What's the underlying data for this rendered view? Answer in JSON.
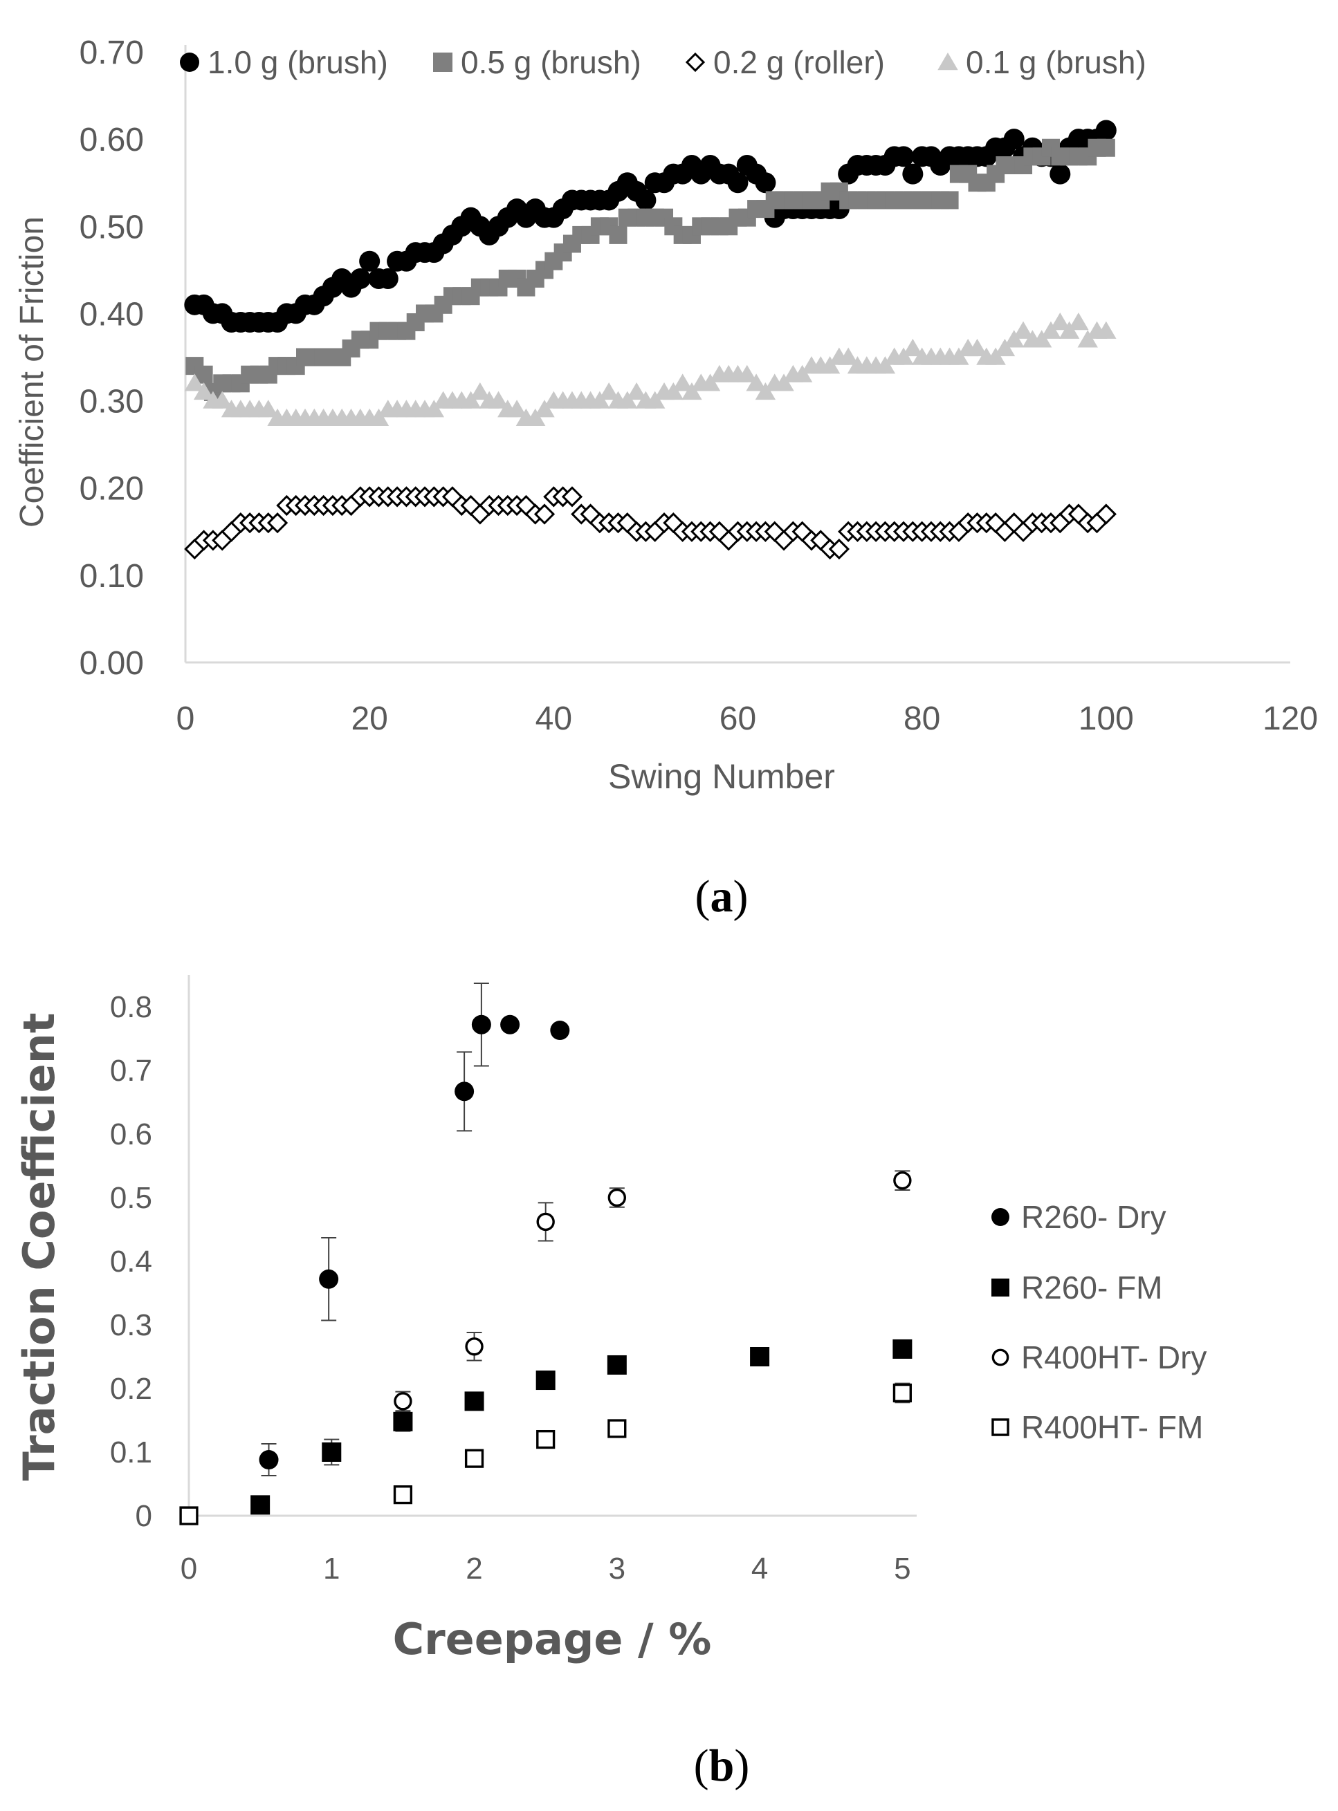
{
  "colors": {
    "black": "#000000",
    "dark_gray": "#7f7f7f",
    "light_gray": "#c8c8c8",
    "axis": "#d9d9d9",
    "text": "#595959"
  },
  "chart_data": [
    {
      "id": "a",
      "type": "scatter",
      "caption": "a",
      "xlabel": "Swing Number",
      "ylabel": "Coefficient of Friction",
      "xlim": [
        0,
        120
      ],
      "ylim": [
        0,
        0.7
      ],
      "x_ticks": [
        "0",
        "20",
        "40",
        "60",
        "80",
        "100",
        "120"
      ],
      "y_ticks": [
        "0.00",
        "0.10",
        "0.20",
        "0.30",
        "0.40",
        "0.50",
        "0.60",
        "0.70"
      ],
      "legend_position": "top",
      "series": [
        {
          "name": "1.0 g (brush)",
          "marker": "circle-filled",
          "color": "#000000",
          "x": [
            1,
            2,
            3,
            4,
            5,
            6,
            7,
            8,
            9,
            10,
            11,
            12,
            13,
            14,
            15,
            16,
            17,
            18,
            19,
            20,
            21,
            22,
            23,
            24,
            25,
            26,
            27,
            28,
            29,
            30,
            31,
            32,
            33,
            34,
            35,
            36,
            37,
            38,
            39,
            40,
            41,
            42,
            43,
            44,
            45,
            46,
            47,
            48,
            49,
            50,
            51,
            52,
            53,
            54,
            55,
            56,
            57,
            58,
            59,
            60,
            61,
            62,
            63,
            64,
            65,
            66,
            67,
            68,
            69,
            70,
            71,
            72,
            73,
            74,
            75,
            76,
            77,
            78,
            79,
            80,
            81,
            82,
            83,
            84,
            85,
            86,
            87,
            88,
            89,
            90,
            91,
            92,
            93,
            94,
            95,
            96,
            97,
            98,
            99,
            100
          ],
          "y": [
            0.41,
            0.41,
            0.4,
            0.4,
            0.39,
            0.39,
            0.39,
            0.39,
            0.39,
            0.39,
            0.4,
            0.4,
            0.41,
            0.41,
            0.42,
            0.43,
            0.44,
            0.43,
            0.44,
            0.46,
            0.44,
            0.44,
            0.46,
            0.46,
            0.47,
            0.47,
            0.47,
            0.48,
            0.49,
            0.5,
            0.51,
            0.5,
            0.49,
            0.5,
            0.51,
            0.52,
            0.51,
            0.52,
            0.51,
            0.51,
            0.52,
            0.53,
            0.53,
            0.53,
            0.53,
            0.53,
            0.54,
            0.55,
            0.54,
            0.53,
            0.55,
            0.55,
            0.56,
            0.56,
            0.57,
            0.56,
            0.57,
            0.56,
            0.56,
            0.55,
            0.57,
            0.56,
            0.55,
            0.51,
            0.52,
            0.52,
            0.52,
            0.52,
            0.52,
            0.52,
            0.52,
            0.56,
            0.57,
            0.57,
            0.57,
            0.57,
            0.58,
            0.58,
            0.56,
            0.58,
            0.58,
            0.57,
            0.58,
            0.58,
            0.58,
            0.58,
            0.58,
            0.59,
            0.59,
            0.6,
            0.58,
            0.59,
            0.58,
            0.58,
            0.56,
            0.59,
            0.6,
            0.6,
            0.6,
            0.61
          ]
        },
        {
          "name": "0.5 g (brush)",
          "marker": "square-filled",
          "color": "#7f7f7f",
          "x": [
            1,
            2,
            3,
            4,
            5,
            6,
            7,
            8,
            9,
            10,
            11,
            12,
            13,
            14,
            15,
            16,
            17,
            18,
            19,
            20,
            21,
            22,
            23,
            24,
            25,
            26,
            27,
            28,
            29,
            30,
            31,
            32,
            33,
            34,
            35,
            36,
            37,
            38,
            39,
            40,
            41,
            42,
            43,
            44,
            45,
            46,
            47,
            48,
            49,
            50,
            51,
            52,
            53,
            54,
            55,
            56,
            57,
            58,
            59,
            60,
            61,
            62,
            63,
            64,
            65,
            66,
            67,
            68,
            69,
            70,
            71,
            72,
            73,
            74,
            75,
            76,
            77,
            78,
            79,
            80,
            81,
            82,
            83,
            84,
            85,
            86,
            87,
            88,
            89,
            90,
            91,
            92,
            93,
            94,
            95,
            96,
            97,
            98,
            99,
            100
          ],
          "y": [
            0.34,
            0.33,
            0.31,
            0.32,
            0.32,
            0.32,
            0.33,
            0.33,
            0.33,
            0.34,
            0.34,
            0.34,
            0.35,
            0.35,
            0.35,
            0.35,
            0.35,
            0.36,
            0.37,
            0.37,
            0.38,
            0.38,
            0.38,
            0.38,
            0.39,
            0.4,
            0.4,
            0.41,
            0.42,
            0.42,
            0.42,
            0.43,
            0.43,
            0.43,
            0.44,
            0.44,
            0.43,
            0.44,
            0.45,
            0.46,
            0.47,
            0.48,
            0.49,
            0.49,
            0.5,
            0.5,
            0.49,
            0.51,
            0.51,
            0.51,
            0.51,
            0.51,
            0.5,
            0.49,
            0.49,
            0.5,
            0.5,
            0.5,
            0.5,
            0.51,
            0.51,
            0.52,
            0.52,
            0.53,
            0.53,
            0.53,
            0.53,
            0.53,
            0.53,
            0.54,
            0.54,
            0.53,
            0.53,
            0.53,
            0.53,
            0.53,
            0.53,
            0.53,
            0.53,
            0.53,
            0.53,
            0.53,
            0.53,
            0.56,
            0.56,
            0.55,
            0.55,
            0.56,
            0.57,
            0.57,
            0.57,
            0.58,
            0.58,
            0.59,
            0.58,
            0.58,
            0.58,
            0.58,
            0.59,
            0.59
          ]
        },
        {
          "name": "0.2 g (roller)",
          "marker": "diamond-open",
          "color": "#000000",
          "x": [
            1,
            2,
            3,
            4,
            5,
            6,
            7,
            8,
            9,
            10,
            11,
            12,
            13,
            14,
            15,
            16,
            17,
            18,
            19,
            20,
            21,
            22,
            23,
            24,
            25,
            26,
            27,
            28,
            29,
            30,
            31,
            32,
            33,
            34,
            35,
            36,
            37,
            38,
            39,
            40,
            41,
            42,
            43,
            44,
            45,
            46,
            47,
            48,
            49,
            50,
            51,
            52,
            53,
            54,
            55,
            56,
            57,
            58,
            59,
            60,
            61,
            62,
            63,
            64,
            65,
            66,
            67,
            68,
            69,
            70,
            71,
            72,
            73,
            74,
            75,
            76,
            77,
            78,
            79,
            80,
            81,
            82,
            83,
            84,
            85,
            86,
            87,
            88,
            89,
            90,
            91,
            92,
            93,
            94,
            95,
            96,
            97,
            98,
            99,
            100
          ],
          "y": [
            0.13,
            0.14,
            0.14,
            0.14,
            0.15,
            0.16,
            0.16,
            0.16,
            0.16,
            0.16,
            0.18,
            0.18,
            0.18,
            0.18,
            0.18,
            0.18,
            0.18,
            0.18,
            0.19,
            0.19,
            0.19,
            0.19,
            0.19,
            0.19,
            0.19,
            0.19,
            0.19,
            0.19,
            0.19,
            0.18,
            0.18,
            0.17,
            0.18,
            0.18,
            0.18,
            0.18,
            0.18,
            0.17,
            0.17,
            0.19,
            0.19,
            0.19,
            0.17,
            0.17,
            0.16,
            0.16,
            0.16,
            0.16,
            0.15,
            0.15,
            0.15,
            0.16,
            0.16,
            0.15,
            0.15,
            0.15,
            0.15,
            0.15,
            0.14,
            0.15,
            0.15,
            0.15,
            0.15,
            0.15,
            0.14,
            0.15,
            0.15,
            0.14,
            0.14,
            0.13,
            0.13,
            0.15,
            0.15,
            0.15,
            0.15,
            0.15,
            0.15,
            0.15,
            0.15,
            0.15,
            0.15,
            0.15,
            0.15,
            0.15,
            0.16,
            0.16,
            0.16,
            0.16,
            0.15,
            0.16,
            0.15,
            0.16,
            0.16,
            0.16,
            0.16,
            0.17,
            0.17,
            0.16,
            0.16,
            0.17
          ]
        },
        {
          "name": "0.1 g (brush)",
          "marker": "triangle-filled",
          "color": "#c8c8c8",
          "x": [
            1,
            2,
            3,
            4,
            5,
            6,
            7,
            8,
            9,
            10,
            11,
            12,
            13,
            14,
            15,
            16,
            17,
            18,
            19,
            20,
            21,
            22,
            23,
            24,
            25,
            26,
            27,
            28,
            29,
            30,
            31,
            32,
            33,
            34,
            35,
            36,
            37,
            38,
            39,
            40,
            41,
            42,
            43,
            44,
            45,
            46,
            47,
            48,
            49,
            50,
            51,
            52,
            53,
            54,
            55,
            56,
            57,
            58,
            59,
            60,
            61,
            62,
            63,
            64,
            65,
            66,
            67,
            68,
            69,
            70,
            71,
            72,
            73,
            74,
            75,
            76,
            77,
            78,
            79,
            80,
            81,
            82,
            83,
            84,
            85,
            86,
            87,
            88,
            89,
            90,
            91,
            92,
            93,
            94,
            95,
            96,
            97,
            98,
            99,
            100
          ],
          "y": [
            0.32,
            0.31,
            0.3,
            0.3,
            0.29,
            0.29,
            0.29,
            0.29,
            0.29,
            0.28,
            0.28,
            0.28,
            0.28,
            0.28,
            0.28,
            0.28,
            0.28,
            0.28,
            0.28,
            0.28,
            0.28,
            0.29,
            0.29,
            0.29,
            0.29,
            0.29,
            0.29,
            0.3,
            0.3,
            0.3,
            0.3,
            0.31,
            0.3,
            0.3,
            0.29,
            0.29,
            0.28,
            0.28,
            0.29,
            0.3,
            0.3,
            0.3,
            0.3,
            0.3,
            0.3,
            0.31,
            0.3,
            0.3,
            0.31,
            0.3,
            0.3,
            0.31,
            0.31,
            0.32,
            0.31,
            0.32,
            0.32,
            0.33,
            0.33,
            0.33,
            0.33,
            0.32,
            0.31,
            0.32,
            0.32,
            0.33,
            0.33,
            0.34,
            0.34,
            0.34,
            0.35,
            0.35,
            0.34,
            0.34,
            0.34,
            0.34,
            0.35,
            0.35,
            0.36,
            0.35,
            0.35,
            0.35,
            0.35,
            0.35,
            0.36,
            0.36,
            0.35,
            0.35,
            0.36,
            0.37,
            0.38,
            0.37,
            0.37,
            0.38,
            0.39,
            0.38,
            0.39,
            0.37,
            0.38,
            0.38
          ]
        }
      ]
    },
    {
      "id": "b",
      "type": "scatter",
      "caption": "b",
      "xlabel": "Creepage / %",
      "ylabel": "Traction Coefficient",
      "xlim": [
        0,
        5.1
      ],
      "ylim": [
        0,
        0.85
      ],
      "x_ticks": [
        "0",
        "1",
        "2",
        "3",
        "4",
        "5"
      ],
      "y_ticks": [
        "0",
        "0.1",
        "0.2",
        "0.3",
        "0.4",
        "0.5",
        "0.6",
        "0.7",
        "0.8"
      ],
      "legend_position": "right",
      "series": [
        {
          "name": "R260- Dry",
          "marker": "circle-filled",
          "color": "#000000",
          "x": [
            0.56,
            0.98,
            1.93,
            2.05,
            2.25,
            2.6
          ],
          "y": [
            0.088,
            0.372,
            0.667,
            0.772,
            0.772,
            0.763
          ],
          "error": [
            0.025,
            0.065,
            0.062,
            0.065,
            0,
            0
          ]
        },
        {
          "name": "R260- FM",
          "marker": "square-filled",
          "color": "#000000",
          "x": [
            0.5,
            1.0,
            1.5,
            2.0,
            2.5,
            3.0,
            4.0,
            5.0
          ],
          "y": [
            0.017,
            0.1,
            0.148,
            0.18,
            0.213,
            0.237,
            0.25,
            0.262
          ],
          "error": [
            0,
            0.02,
            0.015,
            0.01,
            0,
            0,
            0,
            0
          ]
        },
        {
          "name": "R400HT- Dry",
          "marker": "circle-open",
          "color": "#000000",
          "x": [
            1.5,
            2.0,
            2.5,
            3.0,
            5.0
          ],
          "y": [
            0.18,
            0.266,
            0.462,
            0.5,
            0.527
          ],
          "error": [
            0.015,
            0.022,
            0.03,
            0.015,
            0.015
          ]
        },
        {
          "name": "R400HT- FM",
          "marker": "square-open",
          "color": "#000000",
          "x": [
            0.0,
            1.5,
            2.0,
            2.5,
            3.0,
            5.0
          ],
          "y": [
            0.0,
            0.033,
            0.09,
            0.12,
            0.137,
            0.193
          ],
          "error": [
            0,
            0,
            0,
            0,
            0,
            0.015
          ]
        }
      ]
    }
  ]
}
